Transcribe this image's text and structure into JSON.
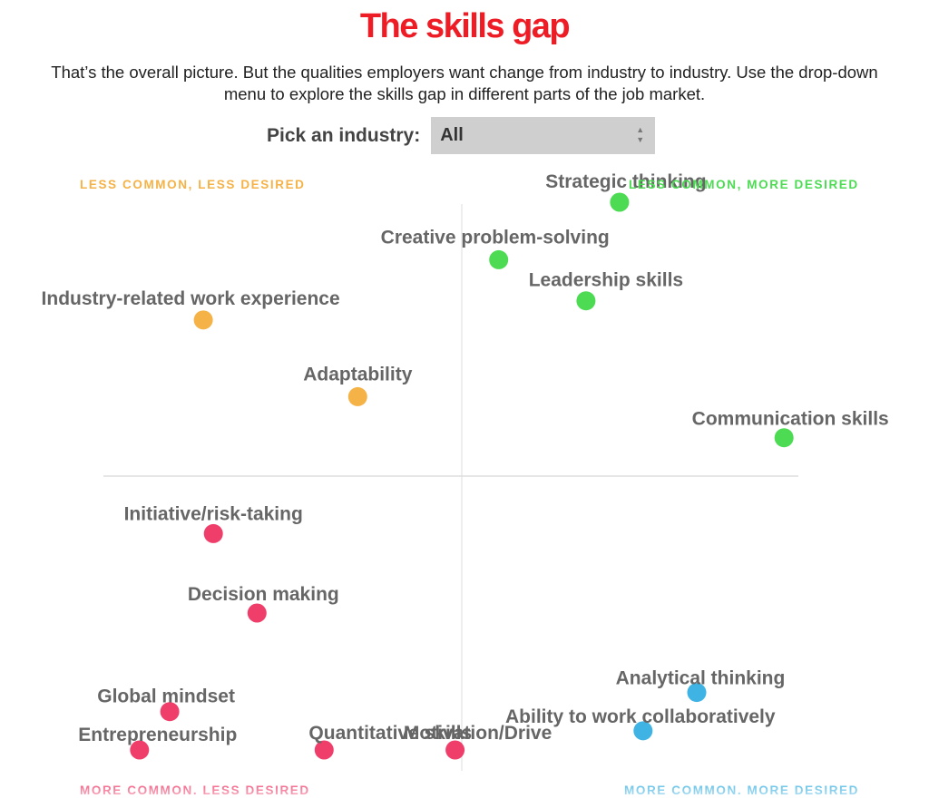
{
  "header": {
    "title": "The skills gap",
    "intro_line1": "That’s the overall picture. But the qualities employers want change from industry to industry. Use the drop-down",
    "intro_line2": "menu to explore the skills gap in different parts of the job market."
  },
  "picker": {
    "label": "Pick an industry:",
    "selected": "All"
  },
  "chart_data": {
    "type": "scatter",
    "title": "",
    "xlabel": "",
    "ylabel": "",
    "quadrants": {
      "top_left": {
        "label": "LESS COMMON, LESS DESIRED",
        "color": "#f5b247"
      },
      "top_right": {
        "label": "LESS COMMON, MORE DESIRED",
        "color": "#4cdb52"
      },
      "bottom_left": {
        "label": "MORE COMMON. LESS DESIRED",
        "color": "#f03e6a"
      },
      "bottom_right": {
        "label": "MORE COMMON. MORE DESIRED",
        "color": "#3fb3e3"
      }
    },
    "xlim": [
      -1,
      1
    ],
    "ylim": [
      -1,
      1
    ],
    "points": [
      {
        "label": "Strategic thinking",
        "x": 0.47,
        "y": 1.0,
        "quadrant": "top_right"
      },
      {
        "label": "Creative problem-solving",
        "x": 0.11,
        "y": 0.79,
        "quadrant": "top_right"
      },
      {
        "label": "Leadership skills",
        "x": 0.37,
        "y": 0.64,
        "quadrant": "top_right"
      },
      {
        "label": "Communication skills",
        "x": 0.96,
        "y": 0.14,
        "quadrant": "top_right"
      },
      {
        "label": "Industry-related work experience",
        "x": -0.77,
        "y": 0.57,
        "quadrant": "top_left"
      },
      {
        "label": "Adaptability",
        "x": -0.31,
        "y": 0.29,
        "quadrant": "top_left"
      },
      {
        "label": "Initiative/risk-taking",
        "x": -0.74,
        "y": -0.21,
        "quadrant": "bottom_left"
      },
      {
        "label": "Decision making",
        "x": -0.61,
        "y": -0.5,
        "quadrant": "bottom_left"
      },
      {
        "label": "Global mindset",
        "x": -0.87,
        "y": -0.86,
        "quadrant": "bottom_left"
      },
      {
        "label": "Entrepreneurship",
        "x": -0.96,
        "y": -1.0,
        "quadrant": "bottom_left"
      },
      {
        "label": "Quantitative skills",
        "x": -0.41,
        "y": -1.0,
        "quadrant": "bottom_left"
      },
      {
        "label": "Motivation/Drive",
        "x": -0.02,
        "y": -1.0,
        "quadrant": "bottom_left"
      },
      {
        "label": "Analytical thinking",
        "x": 0.7,
        "y": -0.79,
        "quadrant": "bottom_right"
      },
      {
        "label": "Ability to work collaboratively",
        "x": 0.54,
        "y": -0.93,
        "quadrant": "bottom_right"
      }
    ],
    "grid": false
  }
}
